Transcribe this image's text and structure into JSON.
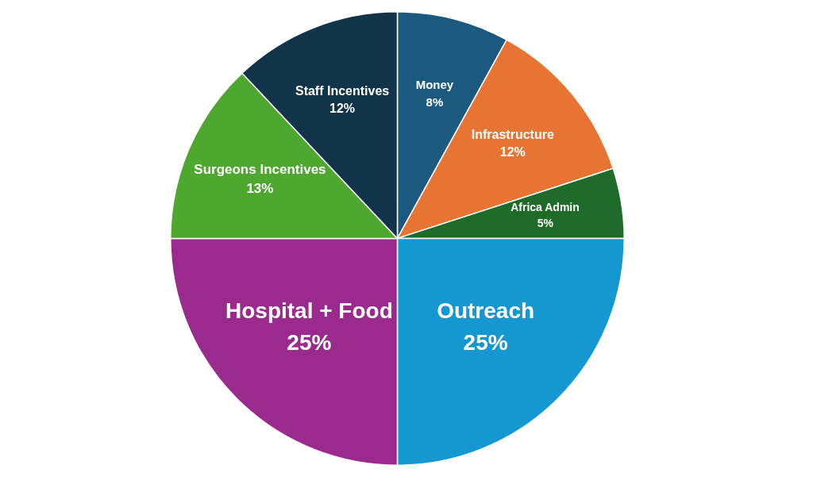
{
  "chart_data": {
    "type": "pie",
    "categories": [
      "Money",
      "Infrastructure",
      "Africa Admin",
      "Outreach",
      "Hospital + Food",
      "Surgeons Incentives",
      "Staff Incentives"
    ],
    "values": [
      8,
      12,
      5,
      25,
      25,
      13,
      12
    ],
    "value_labels": [
      "8%",
      "12%",
      "5%",
      "25%",
      "25%",
      "13%",
      "12%"
    ],
    "colors": [
      "#1b5a7e",
      "#e87434",
      "#1e6b2a",
      "#1597d2",
      "#9b2a8f",
      "#4ea72e",
      "#12344a"
    ]
  }
}
